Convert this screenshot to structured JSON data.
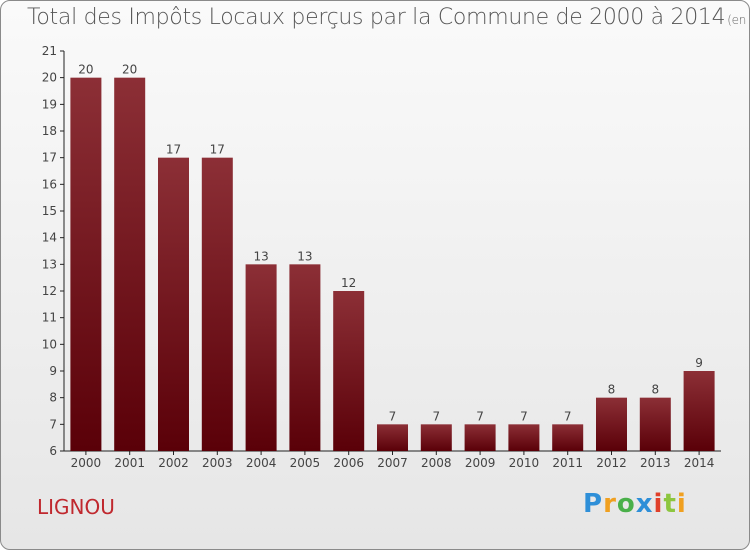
{
  "title": "Total des Impôts Locaux perçus par la Commune de 2000 à 2014",
  "unit": "(en milliers d'€)",
  "commune": "LIGNOU",
  "logo": {
    "letters": [
      "P",
      "r",
      "o",
      "x",
      "i",
      "t",
      "i"
    ]
  },
  "colors": {
    "bar_top": "#8c2f36",
    "bar_bottom": "#5a0008",
    "title": "#555555",
    "commune": "#c0282e"
  },
  "chart_data": {
    "type": "bar",
    "title": "Total des Impôts Locaux perçus par la Commune de 2000 à 2014",
    "xlabel": "",
    "ylabel": "",
    "ylim": [
      6,
      21
    ],
    "yticks": [
      6,
      7,
      8,
      9,
      10,
      11,
      12,
      13,
      14,
      15,
      16,
      17,
      18,
      19,
      20,
      21
    ],
    "grid": false,
    "categories": [
      "2000",
      "2001",
      "2002",
      "2003",
      "2004",
      "2005",
      "2006",
      "2007",
      "2008",
      "2009",
      "2010",
      "2011",
      "2012",
      "2013",
      "2014"
    ],
    "values": [
      20,
      20,
      17,
      17,
      13,
      13,
      12,
      7,
      7,
      7,
      7,
      7,
      8,
      8,
      9
    ]
  }
}
